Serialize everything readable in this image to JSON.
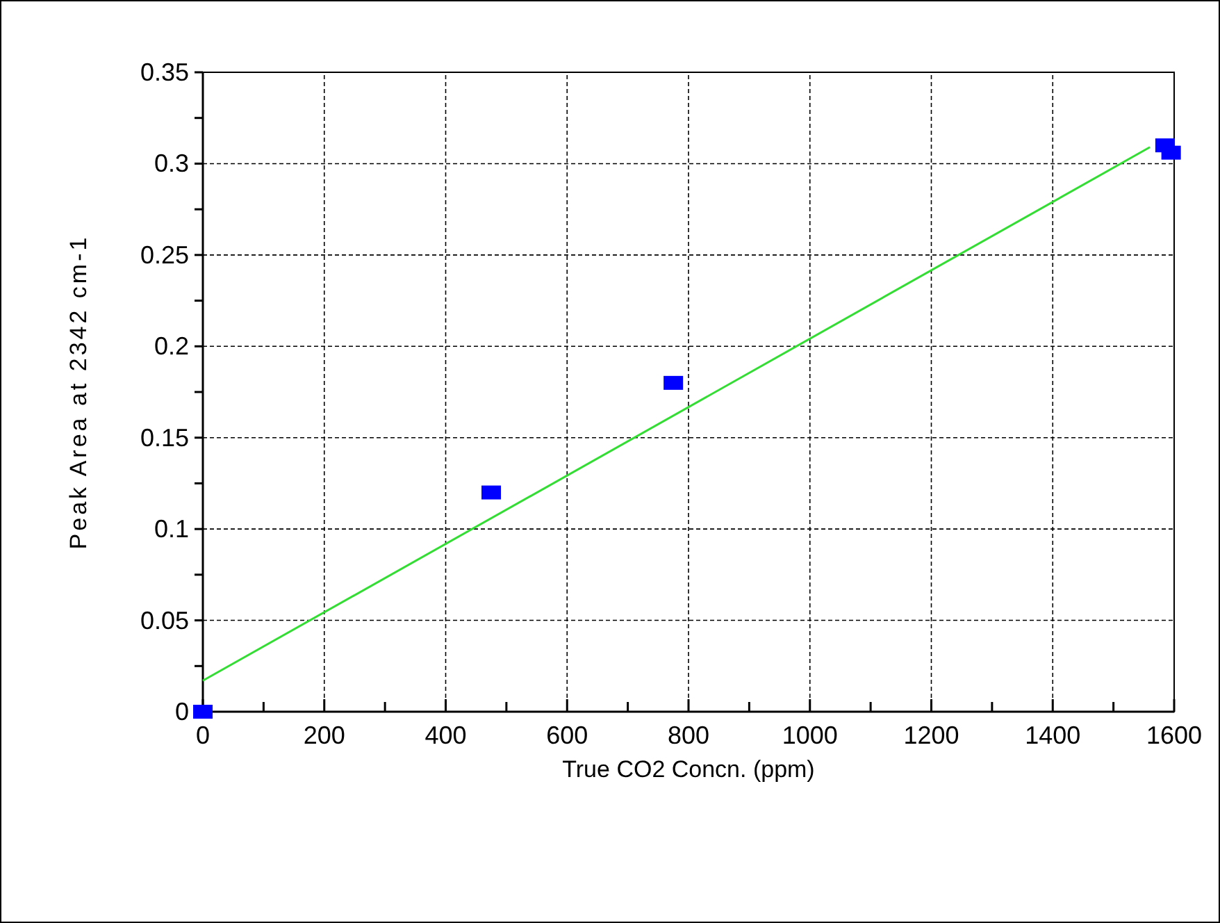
{
  "chart_data": {
    "type": "scatter",
    "xlabel": "True CO2 Concn. (ppm)",
    "ylabel": "Peak Area at 2342 cm-1",
    "xlim": [
      0,
      1600
    ],
    "ylim": [
      0,
      0.35
    ],
    "xticks": [
      0,
      {
        "value": 100,
        "label": null
      },
      200,
      {
        "value": 300,
        "label": null
      },
      400,
      {
        "value": 500,
        "label": null
      },
      600,
      {
        "value": 700,
        "label": null
      },
      800,
      {
        "value": 900,
        "label": null
      },
      1000,
      {
        "value": 1100,
        "label": null
      },
      1200,
      {
        "value": 1300,
        "label": null
      },
      1400,
      {
        "value": 1500,
        "label": null
      },
      1600
    ],
    "yticks": [
      0,
      {
        "value": 0.025,
        "label": null
      },
      0.05,
      {
        "value": 0.075,
        "label": null
      },
      0.1,
      {
        "value": 0.125,
        "label": null
      },
      0.15,
      {
        "value": 0.175,
        "label": null
      },
      0.2,
      {
        "value": 0.225,
        "label": null
      },
      0.25,
      {
        "value": 0.275,
        "label": null
      },
      0.3,
      {
        "value": 0.325,
        "label": null
      },
      0.35
    ],
    "grid": true,
    "series": [
      {
        "marker": "square",
        "color": "#0000ff",
        "x": [
          0,
          475,
          775,
          1585,
          1595
        ],
        "values": [
          0,
          0.12,
          0.18,
          0.31,
          0.306
        ]
      },
      {
        "type": "line",
        "color": "#33dd33",
        "x": [
          0,
          1560
        ],
        "values": [
          0.017,
          0.309
        ]
      }
    ]
  }
}
